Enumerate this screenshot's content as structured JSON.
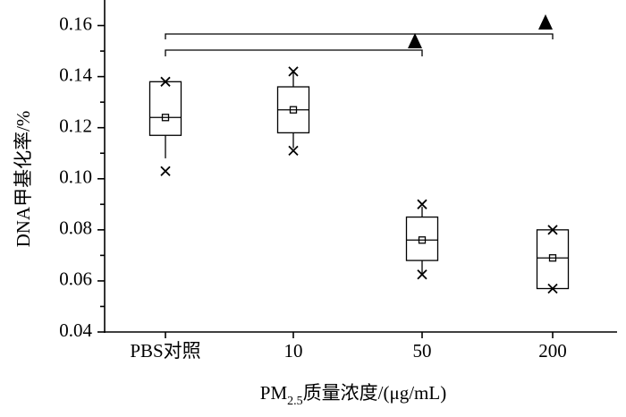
{
  "chart_data": {
    "type": "box",
    "ylabel": "DNA甲基化率/%",
    "xlabel": {
      "main": "PM",
      "sub": "2.5",
      "rest": "质量浓度/(μg/mL)"
    },
    "categories": [
      "PBS对照",
      "10",
      "50",
      "200"
    ],
    "boxes": [
      {
        "min": 0.103,
        "whisker_low": 0.108,
        "q1": 0.117,
        "median": 0.124,
        "mean": 0.124,
        "q3": 0.138,
        "whisker_high": 0.138,
        "max": 0.138
      },
      {
        "min": 0.111,
        "whisker_low": 0.112,
        "q1": 0.118,
        "median": 0.127,
        "mean": 0.127,
        "q3": 0.136,
        "whisker_high": 0.142,
        "max": 0.142
      },
      {
        "min": 0.0625,
        "whisker_low": 0.063,
        "q1": 0.068,
        "median": 0.076,
        "mean": 0.076,
        "q3": 0.085,
        "whisker_high": 0.089,
        "max": 0.09
      },
      {
        "min": 0.057,
        "whisker_low": 0.057,
        "q1": 0.057,
        "median": 0.069,
        "mean": 0.069,
        "q3": 0.08,
        "whisker_high": 0.08,
        "max": 0.08
      }
    ],
    "color": "#000000",
    "ylim": [
      0.04,
      0.17
    ],
    "yticks": [
      0.04,
      0.06,
      0.08,
      {
        "value": 0.1,
        "label": "0.10"
      },
      0.12,
      0.14,
      0.16
    ]
  }
}
